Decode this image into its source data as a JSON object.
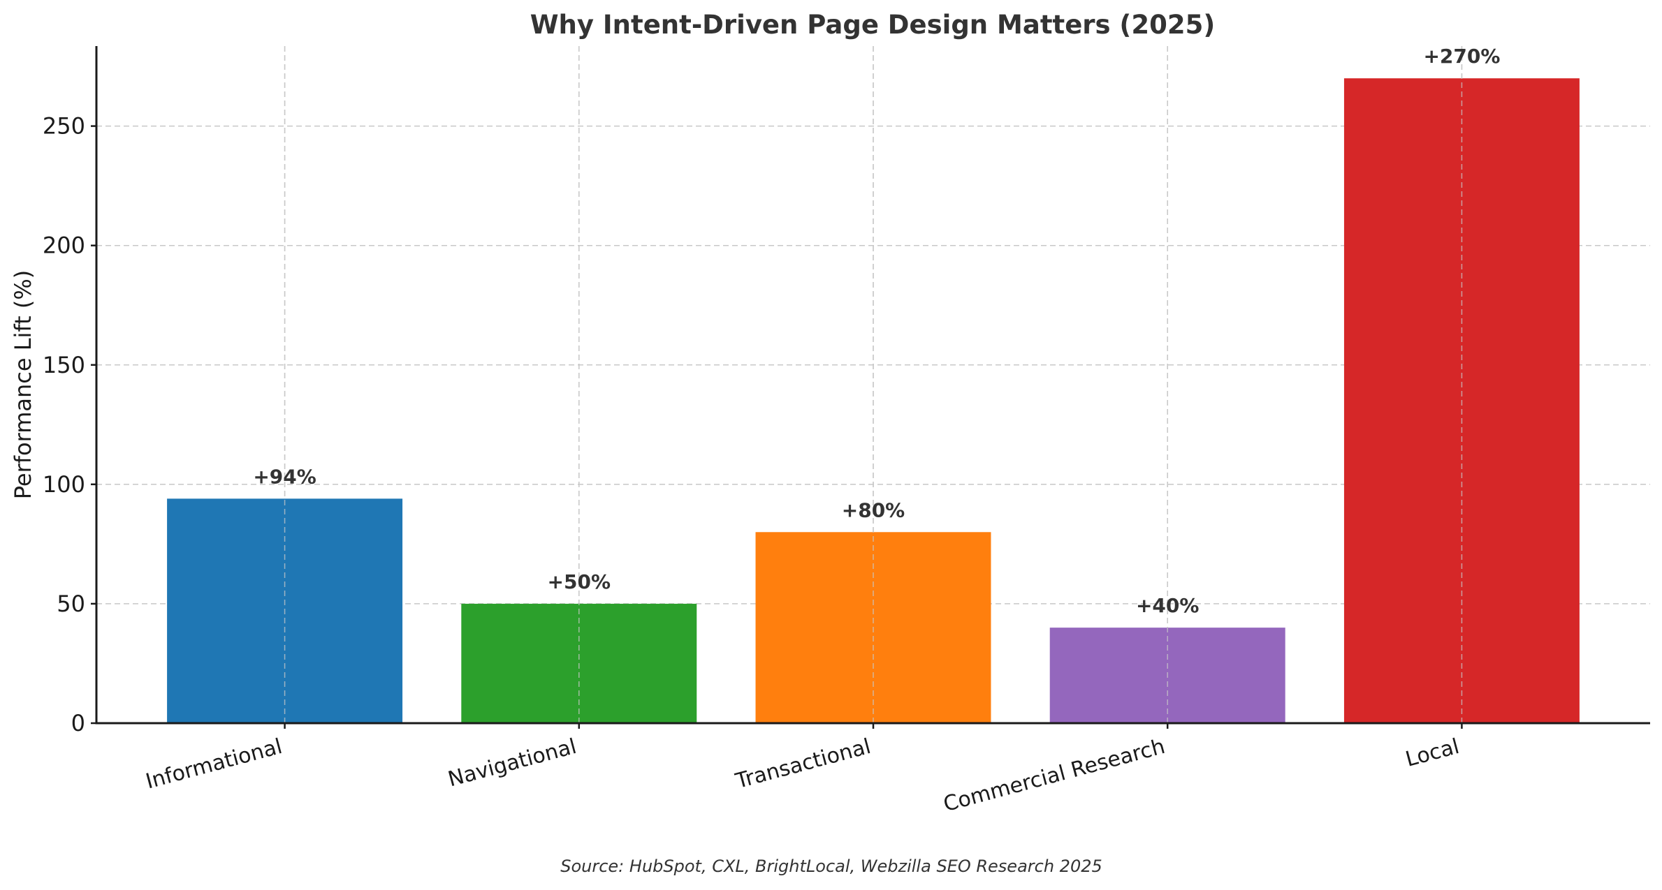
{
  "chart_data": {
    "type": "bar",
    "title": "Why Intent-Driven Page Design Matters (2025)",
    "xlabel": "",
    "ylabel": "Performance Lift (%)",
    "categories": [
      "Informational",
      "Navigational",
      "Transactional",
      "Commercial Research",
      "Local"
    ],
    "values": [
      94,
      50,
      80,
      40,
      270
    ],
    "data_labels": [
      "+94%",
      "+50%",
      "+80%",
      "+40%",
      "+270%"
    ],
    "colors": [
      "#1f77b4",
      "#2ca02c",
      "#ff7f0e",
      "#9467bd",
      "#d62728"
    ],
    "ylim": [
      0,
      283.5
    ],
    "yticks": [
      0,
      50,
      100,
      150,
      200,
      250
    ],
    "xtick_rotation": 15,
    "grid": true,
    "legend": null,
    "annotation": "Source: HubSpot, CXL, BrightLocal, Webzilla SEO Research 2025"
  }
}
